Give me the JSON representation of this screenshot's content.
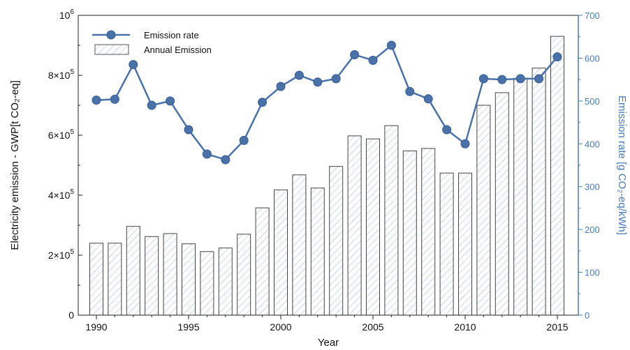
{
  "chart_data": {
    "type": "bar+line",
    "x": [
      1990,
      1991,
      1992,
      1993,
      1994,
      1995,
      1996,
      1997,
      1998,
      1999,
      2000,
      2001,
      2002,
      2003,
      2004,
      2005,
      2006,
      2007,
      2008,
      2009,
      2010,
      2011,
      2012,
      2013,
      2014,
      2015
    ],
    "xlabel": "Year",
    "x_ticks": [
      "1990",
      "1995",
      "2000",
      "2005",
      "2010",
      "2015"
    ],
    "y_left_label": "Electricity emission - GWP[t CO₂-eq]",
    "y_left_ticks": [
      {
        "value": 0,
        "label": "0",
        "exp": ""
      },
      {
        "value": 200000,
        "label": "2×10",
        "exp": "5"
      },
      {
        "value": 400000,
        "label": "4×10",
        "exp": "5"
      },
      {
        "value": 600000,
        "label": "6×10",
        "exp": "5"
      },
      {
        "value": 800000,
        "label": "8×10",
        "exp": "5"
      },
      {
        "value": 1000000,
        "label": "10",
        "exp": "6"
      }
    ],
    "ylim_left": [
      0,
      1000000
    ],
    "y_right_label": "Emission rate [g CO₂-eq/kWh]",
    "y_right_ticks": [
      "0",
      "100",
      "200",
      "300",
      "400",
      "500",
      "600",
      "700"
    ],
    "ylim_right": [
      0,
      700
    ],
    "grid": false,
    "legend_position": "top-left",
    "series": [
      {
        "name": "Annual Emission",
        "type": "bar",
        "axis": "left",
        "color": "#8aa8c8",
        "values": [
          240000,
          240000,
          296000,
          262000,
          272000,
          238000,
          212000,
          224000,
          270000,
          358000,
          418000,
          468000,
          424000,
          496000,
          598000,
          588000,
          632000,
          548000,
          556000,
          474000,
          474000,
          700000,
          742000,
          790000,
          824000,
          930000
        ]
      },
      {
        "name": "Emission rate",
        "type": "line",
        "axis": "right",
        "color": "#4a72a8",
        "values": [
          502,
          504,
          585,
          490,
          500,
          433,
          376,
          363,
          408,
          497,
          534,
          560,
          544,
          552,
          608,
          595,
          630,
          522,
          505,
          433,
          400,
          552,
          550,
          552,
          552,
          603
        ]
      }
    ]
  }
}
